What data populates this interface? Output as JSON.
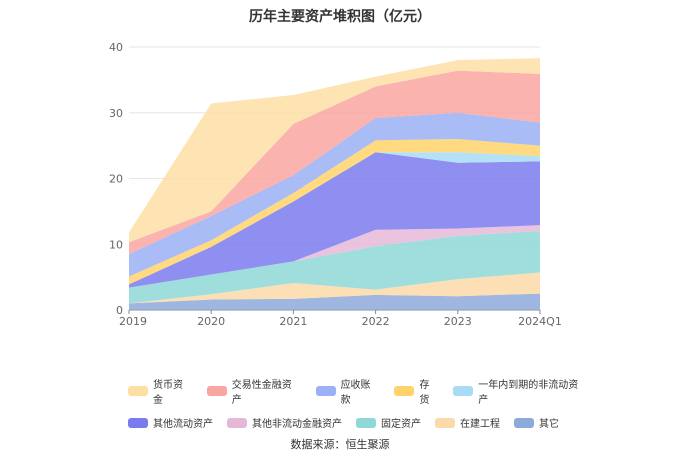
{
  "chart_data": {
    "type": "area",
    "stacked": true,
    "title": "历年主要资产堆积图（亿元）",
    "categories": [
      "2019",
      "2020",
      "2021",
      "2022",
      "2023",
      "2024Q1"
    ],
    "ylim": [
      0,
      40
    ],
    "yticks": [
      0,
      10,
      20,
      30,
      40
    ],
    "grid": true,
    "legend_position": "bottom",
    "series": [
      {
        "name": "其它",
        "color": "#8eaadb",
        "values": [
          1.0,
          1.6,
          1.7,
          2.3,
          2.1,
          2.5
        ]
      },
      {
        "name": "在建工程",
        "color": "#fcd9a8",
        "values": [
          0.0,
          0.8,
          2.4,
          0.8,
          2.6,
          3.2
        ]
      },
      {
        "name": "固定资产",
        "color": "#8fd8d8",
        "values": [
          2.4,
          3.0,
          3.3,
          6.6,
          6.6,
          6.3
        ]
      },
      {
        "name": "其他非流动金融资产",
        "color": "#e6b8d8",
        "values": [
          0.0,
          0.0,
          0.0,
          2.5,
          1.1,
          0.9
        ]
      },
      {
        "name": "其他流动资产",
        "color": "#7b7bf0",
        "values": [
          0.5,
          4.2,
          9.1,
          11.8,
          10.0,
          9.7
        ]
      },
      {
        "name": "一年内到期的非流动资产",
        "color": "#a8dcf4",
        "values": [
          0.0,
          0.0,
          0.0,
          0.0,
          1.6,
          0.8
        ]
      },
      {
        "name": "存货",
        "color": "#ffd36a",
        "values": [
          1.2,
          1.0,
          1.3,
          1.8,
          2.0,
          1.6
        ]
      },
      {
        "name": "应收账款",
        "color": "#9bb0f5",
        "values": [
          3.4,
          3.7,
          2.7,
          3.4,
          4.0,
          3.5
        ]
      },
      {
        "name": "交易性金融资产",
        "color": "#f9a6a0",
        "values": [
          1.8,
          0.7,
          7.8,
          4.8,
          6.4,
          7.4
        ]
      },
      {
        "name": "货币资金",
        "color": "#fddfa4",
        "values": [
          1.5,
          16.4,
          4.4,
          1.5,
          1.6,
          2.4
        ]
      }
    ]
  },
  "legend": {
    "row1": [
      "货币资金",
      "交易性金融资产",
      "应收账款",
      "存货",
      "一年内到期的非流动资产"
    ],
    "row2": [
      "其他流动资产",
      "其他非流动金融资产",
      "固定资产",
      "在建工程",
      "其它"
    ]
  },
  "colors": {
    "货币资金": "#fddfa4",
    "交易性金融资产": "#f9a6a0",
    "应收账款": "#9bb0f5",
    "存货": "#ffd36a",
    "一年内到期的非流动资产": "#a8dcf4",
    "其他流动资产": "#7b7bf0",
    "其他非流动金融资产": "#e6b8d8",
    "固定资产": "#8fd8d8",
    "在建工程": "#fcd9a8",
    "其它": "#8eaadb"
  },
  "source_text": "数据来源：恒生聚源"
}
